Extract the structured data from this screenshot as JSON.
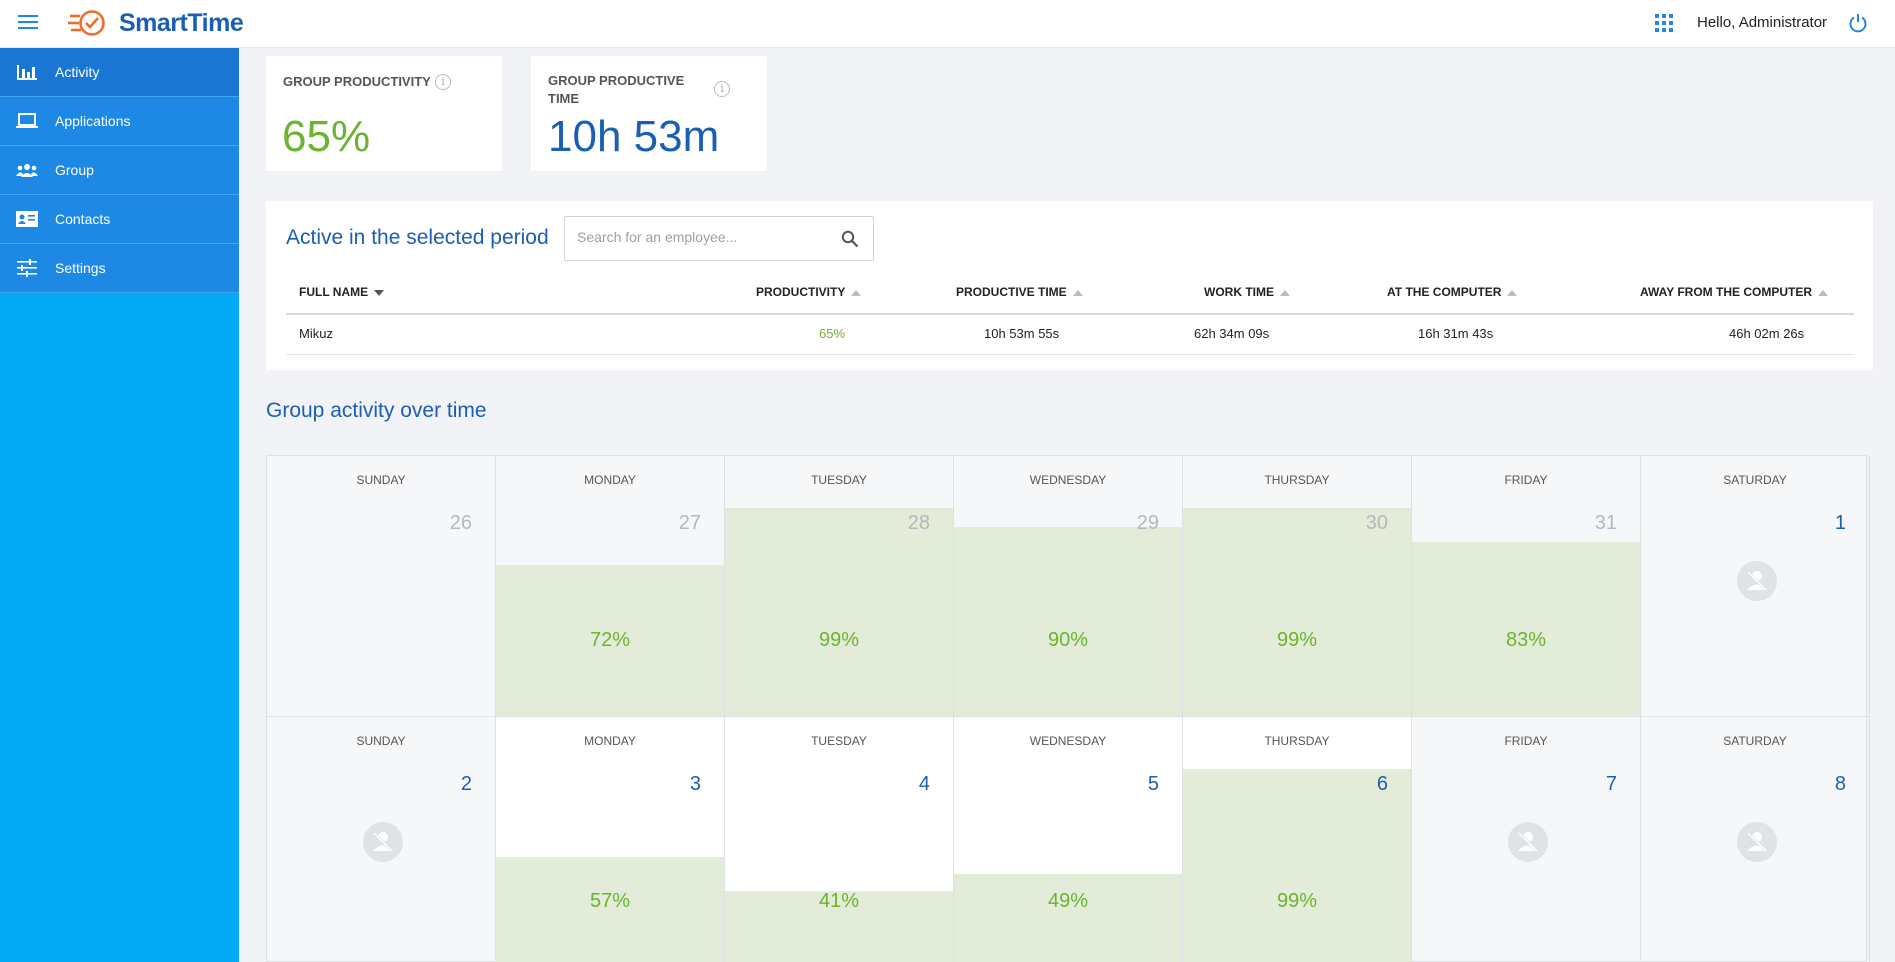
{
  "app": {
    "brand": "SmartTime",
    "greeting": "Hello, Administrator"
  },
  "icons": {
    "menu": "hamburger-icon",
    "apps": "apps-grid-icon",
    "power": "power-icon",
    "search": "search-icon",
    "no_activity": "no-activity-user-icon"
  },
  "colors": {
    "accent": "#1e88e5",
    "sidebar": "#03a9f4",
    "green": "#6ab42f",
    "brand_blue": "#1b5fb4",
    "productive_fill": "#e3ecd8"
  },
  "sidebar": {
    "items": [
      {
        "label": "Activity",
        "icon": "bar-chart-icon",
        "active": true
      },
      {
        "label": "Applications",
        "icon": "laptop-icon"
      },
      {
        "label": "Group",
        "icon": "group-icon"
      },
      {
        "label": "Contacts",
        "icon": "contact-card-icon"
      },
      {
        "label": "Settings",
        "icon": "sliders-icon"
      }
    ]
  },
  "kpis": {
    "productivity": {
      "label": "GROUP PRODUCTIVITY",
      "value": "65%"
    },
    "productive_time": {
      "label_line1": "GROUP PRODUCTIVE",
      "label_line2": "TIME",
      "value": "10h 53m"
    }
  },
  "active": {
    "title": "Active in the selected period",
    "search_placeholder": "Search for an employee...",
    "columns": [
      "FULL NAME",
      "PRODUCTIVITY",
      "PRODUCTIVE TIME",
      "WORK TIME",
      "AT THE COMPUTER",
      "AWAY FROM THE COMPUTER"
    ],
    "rows": [
      {
        "name": "Mikuz",
        "productivity": "65%",
        "productive_time": "10h 53m 55s",
        "work_time": "62h 34m 09s",
        "at_computer": "16h 31m 43s",
        "away": "46h 02m 26s"
      }
    ]
  },
  "calendar": {
    "title": "Group activity over time",
    "weeks": [
      [
        {
          "day": "SUNDAY",
          "num": "26",
          "outside": true
        },
        {
          "day": "MONDAY",
          "num": "27",
          "outside": true,
          "pct": "72%",
          "fill": 0.72
        },
        {
          "day": "TUESDAY",
          "num": "28",
          "outside": true,
          "pct": "99%",
          "fill": 0.99
        },
        {
          "day": "WEDNESDAY",
          "num": "29",
          "outside": true,
          "pct": "90%",
          "fill": 0.9
        },
        {
          "day": "THURSDAY",
          "num": "30",
          "outside": true,
          "pct": "99%",
          "fill": 0.99
        },
        {
          "day": "FRIDAY",
          "num": "31",
          "outside": true,
          "pct": "83%",
          "fill": 0.83
        },
        {
          "day": "SATURDAY",
          "num": "1",
          "noact": true
        }
      ],
      [
        {
          "day": "SUNDAY",
          "num": "2",
          "noact": true
        },
        {
          "day": "MONDAY",
          "num": "3",
          "pct": "57%",
          "fill": 0.57
        },
        {
          "day": "TUESDAY",
          "num": "4",
          "pct": "41%",
          "fill": 0.41
        },
        {
          "day": "WEDNESDAY",
          "num": "5",
          "pct": "49%",
          "fill": 0.49
        },
        {
          "day": "THURSDAY",
          "num": "6",
          "pct": "99%",
          "fill": 0.99
        },
        {
          "day": "FRIDAY",
          "num": "7",
          "noact": true
        },
        {
          "day": "SATURDAY",
          "num": "8",
          "noact": true
        }
      ]
    ]
  }
}
